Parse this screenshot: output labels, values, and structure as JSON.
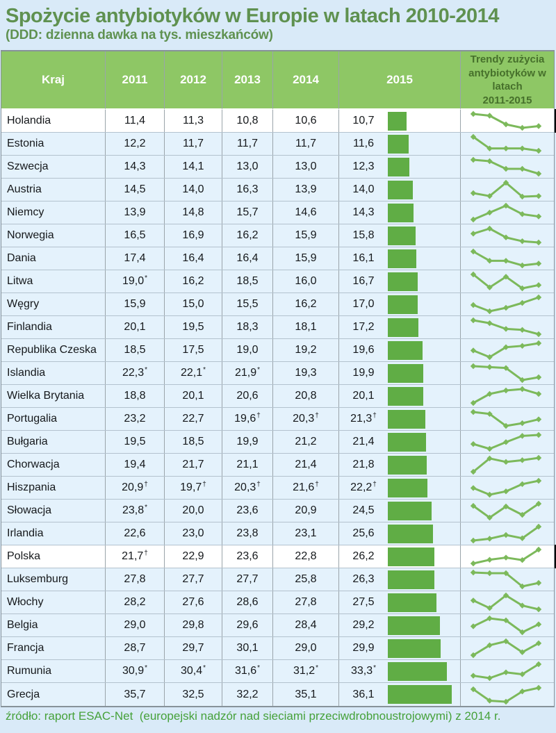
{
  "title": "Spożycie antybiotyków w Europie w latach 2010-2014",
  "subtitle": "(DDD: dzienna dawka na tys. mieszkańców)",
  "source": "źródło: raport ESAC-Net  (europejski nadzór nad sieciami przeciwdrobnoustrojowymi) z 2014 r.",
  "header": {
    "country": "Kraj",
    "years": [
      "2011",
      "2012",
      "2013",
      "2014",
      "2015"
    ],
    "trend": "Trendy zużycia\nantybiotyków w\nlatach\n2011-2015"
  },
  "colors": {
    "page_bg": "#D9EAF8",
    "row_blue": "#E4F2FC",
    "highlight_white": "#FFFFFF",
    "header_green": "#8EC765",
    "header_text": "#FFFFFF",
    "trend_header_text": "#46702B",
    "bar_green": "#60AD45",
    "sparkline_green": "#7CB95B",
    "title_green": "#5F9150",
    "source_green": "#46A13A"
  },
  "chart_data": {
    "type": "table",
    "title": "Spożycie antybiotyków w Europie w latach 2010-2014",
    "subtitle": "(DDD: dzienna dawka na tys. mieszkańców)",
    "columns": [
      "Kraj",
      "2011",
      "2012",
      "2013",
      "2014",
      "2015",
      "Trendy zużycia antybiotyków w latach 2011-2015"
    ],
    "embedded_visuals": [
      "bar-chart-2015-column",
      "sparkline-trend-2011-2015"
    ],
    "footnote_marks_used": [
      "*",
      "†"
    ],
    "rows": [
      {
        "country": "Holandia",
        "labels": [
          "11,4",
          "11,3",
          "10,8",
          "10,6",
          "10,7"
        ],
        "marks": [
          "",
          "",
          "",
          "",
          ""
        ],
        "values": [
          11.4,
          11.3,
          10.8,
          10.6,
          10.7
        ],
        "highlight": true
      },
      {
        "country": "Estonia",
        "labels": [
          "12,2",
          "11,7",
          "11,7",
          "11,7",
          "11,6"
        ],
        "marks": [
          "",
          "",
          "",
          "",
          ""
        ],
        "values": [
          12.2,
          11.7,
          11.7,
          11.7,
          11.6
        ],
        "highlight": false
      },
      {
        "country": "Szwecja",
        "labels": [
          "14,3",
          "14,1",
          "13,0",
          "13,0",
          "12,3"
        ],
        "marks": [
          "",
          "",
          "",
          "",
          ""
        ],
        "values": [
          14.3,
          14.1,
          13.0,
          13.0,
          12.3
        ],
        "highlight": false
      },
      {
        "country": "Austria",
        "labels": [
          "14,5",
          "14,0",
          "16,3",
          "13,9",
          "14,0"
        ],
        "marks": [
          "",
          "",
          "",
          "",
          ""
        ],
        "values": [
          14.5,
          14.0,
          16.3,
          13.9,
          14.0
        ],
        "highlight": false
      },
      {
        "country": "Niemcy",
        "labels": [
          "13,9",
          "14,8",
          "15,7",
          "14,6",
          "14,3"
        ],
        "marks": [
          "",
          "",
          "",
          "",
          ""
        ],
        "values": [
          13.9,
          14.8,
          15.7,
          14.6,
          14.3
        ],
        "highlight": false
      },
      {
        "country": "Norwegia",
        "labels": [
          "16,5",
          "16,9",
          "16,2",
          "15,9",
          "15,8"
        ],
        "marks": [
          "",
          "",
          "",
          "",
          ""
        ],
        "values": [
          16.5,
          16.9,
          16.2,
          15.9,
          15.8
        ],
        "highlight": false
      },
      {
        "country": "Dania",
        "labels": [
          "17,4",
          "16,4",
          "16,4",
          "15,9",
          "16,1"
        ],
        "marks": [
          "",
          "",
          "",
          "",
          ""
        ],
        "values": [
          17.4,
          16.4,
          16.4,
          15.9,
          16.1
        ],
        "highlight": false
      },
      {
        "country": "Litwa",
        "labels": [
          "19,0",
          "16,2",
          "18,5",
          "16,0",
          "16,7"
        ],
        "marks": [
          "*",
          "",
          "",
          "",
          ""
        ],
        "values": [
          19.0,
          16.2,
          18.5,
          16.0,
          16.7
        ],
        "highlight": false
      },
      {
        "country": "Węgry",
        "labels": [
          "15,9",
          "15,0",
          "15,5",
          "16,2",
          "17,0"
        ],
        "marks": [
          "",
          "",
          "",
          "",
          ""
        ],
        "values": [
          15.9,
          15.0,
          15.5,
          16.2,
          17.0
        ],
        "highlight": false
      },
      {
        "country": "Finlandia",
        "labels": [
          "20,1",
          "19,5",
          "18,3",
          "18,1",
          "17,2"
        ],
        "marks": [
          "",
          "",
          "",
          "",
          ""
        ],
        "values": [
          20.1,
          19.5,
          18.3,
          18.1,
          17.2
        ],
        "highlight": false
      },
      {
        "country": "Republika Czeska",
        "labels": [
          "18,5",
          "17,5",
          "19,0",
          "19,2",
          "19,6"
        ],
        "marks": [
          "",
          "",
          "",
          "",
          ""
        ],
        "values": [
          18.5,
          17.5,
          19.0,
          19.2,
          19.6
        ],
        "highlight": false
      },
      {
        "country": "Islandia",
        "labels": [
          "22,3",
          "22,1",
          "21,9",
          "19,3",
          "19,9"
        ],
        "marks": [
          "*",
          "*",
          "*",
          "",
          ""
        ],
        "values": [
          22.3,
          22.1,
          21.9,
          19.3,
          19.9
        ],
        "highlight": false
      },
      {
        "country": "Wielka Brytania",
        "labels": [
          "18,8",
          "20,1",
          "20,6",
          "20,8",
          "20,1"
        ],
        "marks": [
          "",
          "",
          "",
          "",
          ""
        ],
        "values": [
          18.8,
          20.1,
          20.6,
          20.8,
          20.1
        ],
        "highlight": false
      },
      {
        "country": "Portugalia",
        "labels": [
          "23,2",
          "22,7",
          "19,6",
          "20,3",
          "21,3"
        ],
        "marks": [
          "",
          "",
          "†",
          "†",
          "†"
        ],
        "values": [
          23.2,
          22.7,
          19.6,
          20.3,
          21.3
        ],
        "highlight": false
      },
      {
        "country": "Bułgaria",
        "labels": [
          "19,5",
          "18,5",
          "19,9",
          "21,2",
          "21,4"
        ],
        "marks": [
          "",
          "",
          "",
          "",
          ""
        ],
        "values": [
          19.5,
          18.5,
          19.9,
          21.2,
          21.4
        ],
        "highlight": false
      },
      {
        "country": "Chorwacja",
        "labels": [
          "19,4",
          "21,7",
          "21,1",
          "21,4",
          "21,8"
        ],
        "marks": [
          "",
          "",
          "",
          "",
          ""
        ],
        "values": [
          19.4,
          21.7,
          21.1,
          21.4,
          21.8
        ],
        "highlight": false
      },
      {
        "country": "Hiszpania",
        "labels": [
          "20,9",
          "19,7",
          "20,3",
          "21,6",
          "22,2"
        ],
        "marks": [
          "†",
          "†",
          "†",
          "†",
          "†"
        ],
        "values": [
          20.9,
          19.7,
          20.3,
          21.6,
          22.2
        ],
        "highlight": false
      },
      {
        "country": "Słowacja",
        "labels": [
          "23,8",
          "20,0",
          "23,6",
          "20,9",
          "24,5"
        ],
        "marks": [
          "*",
          "",
          "",
          "",
          ""
        ],
        "values": [
          23.8,
          20.0,
          23.6,
          20.9,
          24.5
        ],
        "highlight": false
      },
      {
        "country": "Irlandia",
        "labels": [
          "22,6",
          "23,0",
          "23,8",
          "23,1",
          "25,6"
        ],
        "marks": [
          "",
          "",
          "",
          "",
          ""
        ],
        "values": [
          22.6,
          23.0,
          23.8,
          23.1,
          25.6
        ],
        "highlight": false
      },
      {
        "country": "Polska",
        "labels": [
          "21,7",
          "22,9",
          "23,6",
          "22,8",
          "26,2"
        ],
        "marks": [
          "†",
          "",
          "",
          "",
          ""
        ],
        "values": [
          21.7,
          22.9,
          23.6,
          22.8,
          26.2
        ],
        "highlight": true
      },
      {
        "country": "Luksemburg",
        "labels": [
          "27,8",
          "27,7",
          "27,7",
          "25,8",
          "26,3"
        ],
        "marks": [
          "",
          "",
          "",
          "",
          ""
        ],
        "values": [
          27.8,
          27.7,
          27.7,
          25.8,
          26.3
        ],
        "highlight": false
      },
      {
        "country": "Włochy",
        "labels": [
          "28,2",
          "27,6",
          "28,6",
          "27,8",
          "27,5"
        ],
        "marks": [
          "",
          "",
          "",
          "",
          ""
        ],
        "values": [
          28.2,
          27.6,
          28.6,
          27.8,
          27.5
        ],
        "highlight": false
      },
      {
        "country": "Belgia",
        "labels": [
          "29,0",
          "29,8",
          "29,6",
          "28,4",
          "29,2"
        ],
        "marks": [
          "",
          "",
          "",
          "",
          ""
        ],
        "values": [
          29.0,
          29.8,
          29.6,
          28.4,
          29.2
        ],
        "highlight": false
      },
      {
        "country": "Francja",
        "labels": [
          "28,7",
          "29,7",
          "30,1",
          "29,0",
          "29,9"
        ],
        "marks": [
          "",
          "",
          "",
          "",
          ""
        ],
        "values": [
          28.7,
          29.7,
          30.1,
          29.0,
          29.9
        ],
        "highlight": false
      },
      {
        "country": "Rumunia",
        "labels": [
          "30,9",
          "30,4",
          "31,6",
          "31,2",
          "33,3"
        ],
        "marks": [
          "*",
          "*",
          "*",
          "*",
          "*"
        ],
        "values": [
          30.9,
          30.4,
          31.6,
          31.2,
          33.3
        ],
        "highlight": false
      },
      {
        "country": "Grecja",
        "labels": [
          "35,7",
          "32,5",
          "32,2",
          "35,1",
          "36,1"
        ],
        "marks": [
          "",
          "",
          "",
          "",
          ""
        ],
        "values": [
          35.7,
          32.5,
          32.2,
          35.1,
          36.1
        ],
        "highlight": false
      }
    ]
  }
}
